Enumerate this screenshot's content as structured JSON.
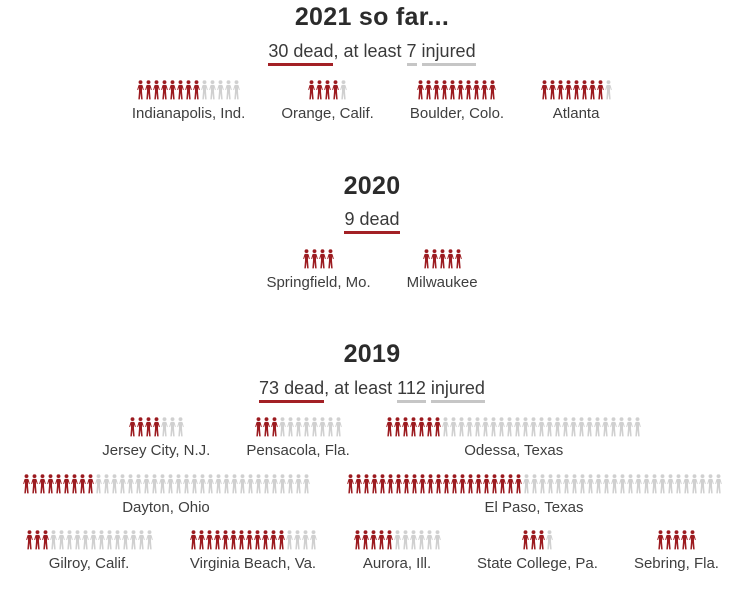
{
  "page": {
    "background": "#ffffff"
  },
  "colors": {
    "dead_icon": "#9c1b20",
    "injured_icon": "#d0d0d0",
    "dead_underline": "#a32025",
    "injured_underline": "#c6c6c6",
    "title_text": "#2b2b2b",
    "body_text": "#3a3a3a"
  },
  "chart_data": {
    "type": "pictogram",
    "unit": "one person icon = one casualty",
    "legend": {
      "dead": {
        "color": "#9c1b20",
        "meaning": "dead"
      },
      "injured": {
        "color": "#d0d0d0",
        "meaning": "injured"
      }
    },
    "sections": [
      {
        "id": "2021",
        "title": "2021 so far...",
        "subtitle": {
          "dead": "30 dead",
          "mid": ", at least ",
          "injured": "7 injured"
        },
        "totals": {
          "dead": 30,
          "injured": 7
        },
        "rows": [
          [
            {
              "city": "Indianapolis, Ind.",
              "dead": 8,
              "injured": 5
            },
            {
              "city": "Orange, Calif.",
              "dead": 4,
              "injured": 1
            },
            {
              "city": "Boulder, Colo.",
              "dead": 10,
              "injured": 0
            },
            {
              "city": "Atlanta",
              "dead": 8,
              "injured": 1
            }
          ]
        ]
      },
      {
        "id": "2020",
        "title": "2020",
        "subtitle": {
          "dead": "9 dead",
          "mid": "",
          "injured": ""
        },
        "totals": {
          "dead": 9,
          "injured": 0
        },
        "rows": [
          [
            {
              "city": "Springfield, Mo.",
              "dead": 4,
              "injured": 0
            },
            {
              "city": "Milwaukee",
              "dead": 5,
              "injured": 0
            }
          ]
        ]
      },
      {
        "id": "2019",
        "title": "2019",
        "subtitle": {
          "dead": "73 dead",
          "mid": ", at least ",
          "injured": "112 injured"
        },
        "totals": {
          "dead": 73,
          "injured": 112
        },
        "rows": [
          [
            {
              "city": "Jersey City, N.J.",
              "dead": 4,
              "injured": 3
            },
            {
              "city": "Pensacola, Fla.",
              "dead": 3,
              "injured": 8
            },
            {
              "city": "Odessa, Texas",
              "dead": 7,
              "injured": 25
            }
          ],
          [
            {
              "city": "Dayton, Ohio",
              "dead": 9,
              "injured": 27
            },
            {
              "city": "El Paso, Texas",
              "dead": 22,
              "injured": 25
            }
          ],
          [
            {
              "city": "Gilroy, Calif.",
              "dead": 3,
              "injured": 13
            },
            {
              "city": "Virginia Beach, Va.",
              "dead": 12,
              "injured": 4
            },
            {
              "city": "Aurora, Ill.",
              "dead": 5,
              "injured": 6
            },
            {
              "city": "State College, Pa.",
              "dead": 3,
              "injured": 1
            },
            {
              "city": "Sebring, Fla.",
              "dead": 5,
              "injured": 0
            }
          ]
        ]
      }
    ]
  }
}
